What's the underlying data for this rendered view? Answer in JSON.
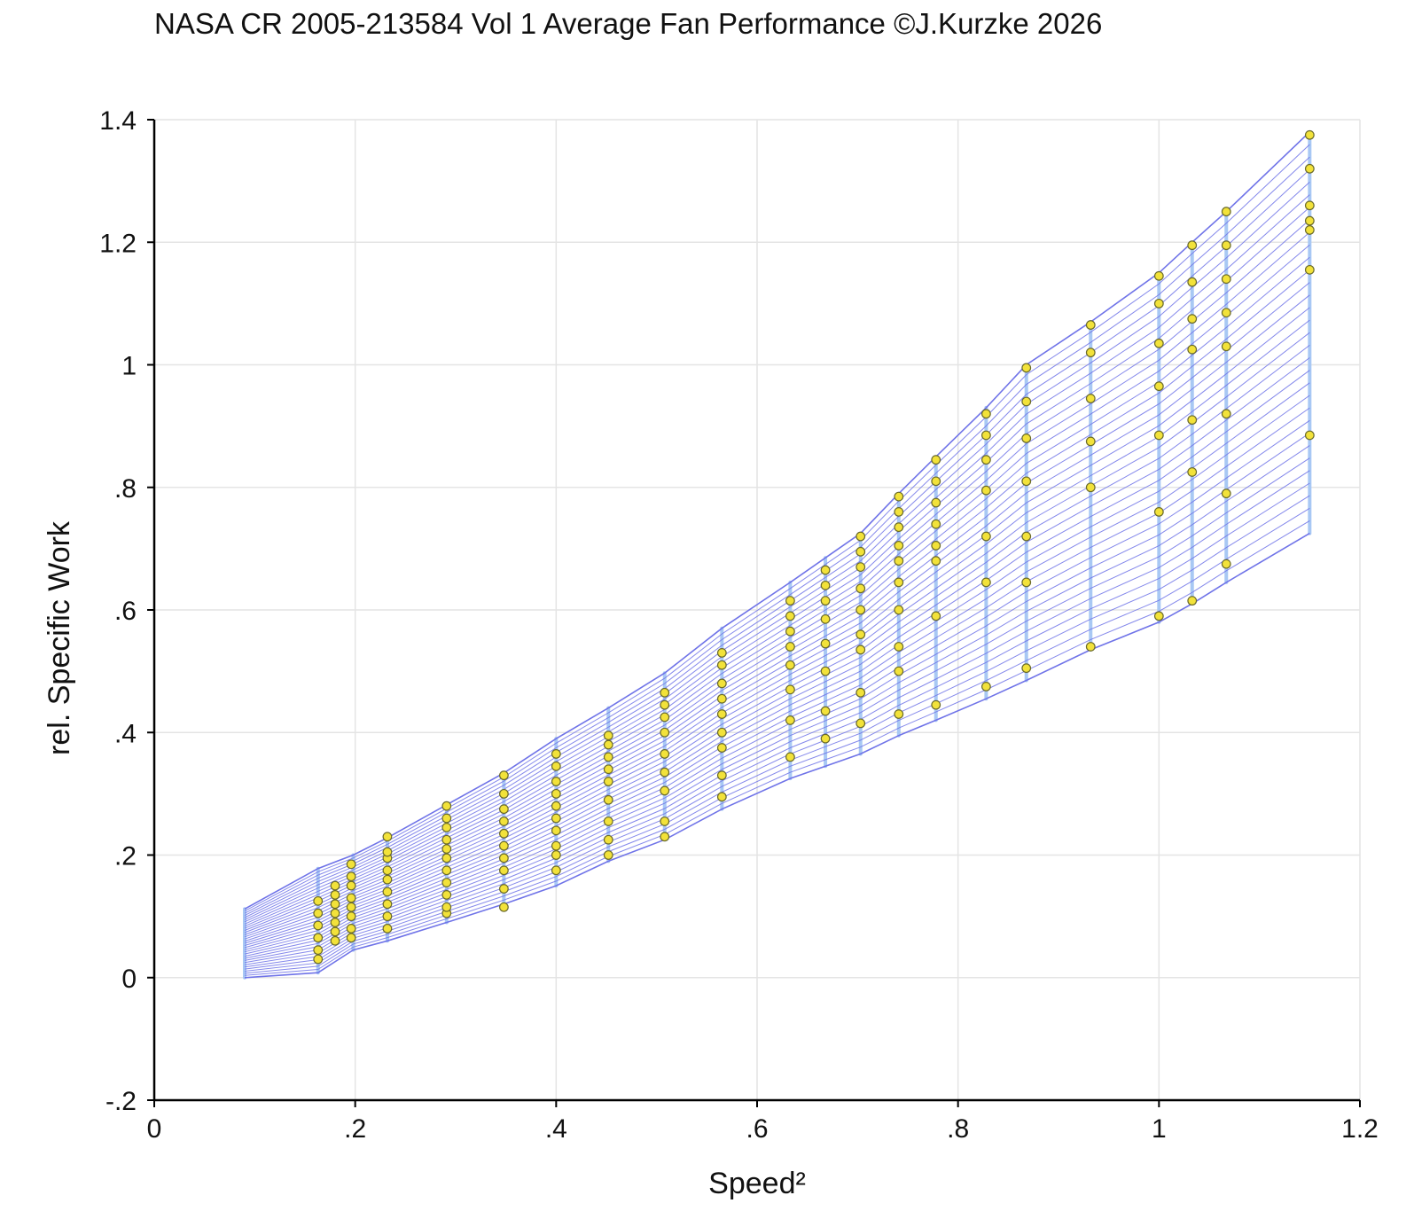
{
  "chart_data": {
    "type": "line",
    "title": "NASA CR 2005-213584 Vol 1 Average Fan Performance ©J.Kurzke 2026",
    "xlabel": "Speed²",
    "ylabel": "rel. Specific Work",
    "xlim": [
      0,
      1.2
    ],
    "ylim": [
      -0.2,
      1.4
    ],
    "xticks": [
      "0",
      ".2",
      ".4",
      ".6",
      ".8",
      "1",
      "1.2"
    ],
    "yticks": [
      "-.2",
      "0",
      ".2",
      ".4",
      ".6",
      ".8",
      "1",
      "1.2",
      "1.4"
    ],
    "grid": true,
    "legend": "none",
    "colors": {
      "lines": "#6f73e8",
      "speed_lines": "#a8c8f4",
      "markers": "#f2e23a",
      "marker_edge": "#6a6a2a"
    },
    "series": [
      {
        "x": [
          0.09,
          0.163,
          0.198,
          0.232,
          0.291,
          0.348,
          0.4,
          0.452,
          0.508,
          0.565,
          0.633,
          0.668,
          0.703,
          0.741,
          0.778,
          0.828,
          0.868,
          0.932,
          1.0,
          1.033,
          1.067,
          1.15
        ],
        "y": [
          0.112,
          0.178,
          0.2,
          0.228,
          0.282,
          0.334,
          0.39,
          0.44,
          0.497,
          0.57,
          0.645,
          0.685,
          0.725,
          0.79,
          0.85,
          0.93,
          1.0,
          1.07,
          1.15,
          1.2,
          1.25,
          1.38
        ]
      },
      {
        "x": [
          0.09,
          0.163,
          0.198,
          0.232,
          0.291,
          0.348,
          0.4,
          0.452,
          0.508,
          0.565,
          0.633,
          0.668,
          0.703,
          0.741,
          0.778,
          0.828,
          0.868,
          0.932,
          1.0,
          1.033,
          1.067,
          1.15
        ],
        "y": [
          0.0,
          0.008,
          0.045,
          0.06,
          0.09,
          0.12,
          0.15,
          0.19,
          0.225,
          0.275,
          0.325,
          0.345,
          0.365,
          0.395,
          0.42,
          0.455,
          0.485,
          0.535,
          0.58,
          0.61,
          0.645,
          0.725
        ]
      }
    ],
    "speed_line_x": [
      0.09,
      0.163,
      0.198,
      0.232,
      0.291,
      0.348,
      0.4,
      0.452,
      0.508,
      0.565,
      0.633,
      0.668,
      0.703,
      0.741,
      0.778,
      0.828,
      0.868,
      0.932,
      1.0,
      1.033,
      1.067,
      1.15
    ],
    "points": [
      {
        "x": 0.163,
        "y": [
          0.03,
          0.045,
          0.065,
          0.085,
          0.105,
          0.125
        ]
      },
      {
        "x": 0.18,
        "y": [
          0.06,
          0.075,
          0.09,
          0.105,
          0.12,
          0.135,
          0.15
        ]
      },
      {
        "x": 0.196,
        "y": [
          0.065,
          0.08,
          0.1,
          0.115,
          0.13,
          0.15,
          0.165,
          0.185
        ]
      },
      {
        "x": 0.232,
        "y": [
          0.08,
          0.1,
          0.12,
          0.14,
          0.16,
          0.175,
          0.195,
          0.205,
          0.23
        ]
      },
      {
        "x": 0.291,
        "y": [
          0.105,
          0.115,
          0.135,
          0.155,
          0.175,
          0.195,
          0.21,
          0.225,
          0.245,
          0.26,
          0.28
        ]
      },
      {
        "x": 0.348,
        "y": [
          0.115,
          0.145,
          0.175,
          0.195,
          0.215,
          0.235,
          0.255,
          0.275,
          0.3,
          0.33
        ]
      },
      {
        "x": 0.4,
        "y": [
          0.175,
          0.2,
          0.215,
          0.24,
          0.26,
          0.28,
          0.3,
          0.32,
          0.345,
          0.365
        ]
      },
      {
        "x": 0.452,
        "y": [
          0.2,
          0.225,
          0.255,
          0.29,
          0.32,
          0.34,
          0.36,
          0.38,
          0.395
        ]
      },
      {
        "x": 0.508,
        "y": [
          0.23,
          0.255,
          0.305,
          0.335,
          0.365,
          0.4,
          0.425,
          0.445,
          0.465
        ]
      },
      {
        "x": 0.565,
        "y": [
          0.295,
          0.33,
          0.375,
          0.4,
          0.43,
          0.455,
          0.48,
          0.51,
          0.53
        ]
      },
      {
        "x": 0.633,
        "y": [
          0.36,
          0.42,
          0.47,
          0.51,
          0.54,
          0.565,
          0.59,
          0.615
        ]
      },
      {
        "x": 0.668,
        "y": [
          0.39,
          0.435,
          0.5,
          0.545,
          0.585,
          0.615,
          0.64,
          0.665
        ]
      },
      {
        "x": 0.703,
        "y": [
          0.415,
          0.465,
          0.535,
          0.56,
          0.6,
          0.635,
          0.67,
          0.695,
          0.72
        ]
      },
      {
        "x": 0.741,
        "y": [
          0.43,
          0.5,
          0.54,
          0.6,
          0.645,
          0.68,
          0.705,
          0.735,
          0.76,
          0.785
        ]
      },
      {
        "x": 0.778,
        "y": [
          0.445,
          0.59,
          0.68,
          0.705,
          0.74,
          0.775,
          0.81,
          0.845
        ]
      },
      {
        "x": 0.828,
        "y": [
          0.475,
          0.645,
          0.72,
          0.795,
          0.845,
          0.885,
          0.92
        ]
      },
      {
        "x": 0.868,
        "y": [
          0.505,
          0.645,
          0.72,
          0.81,
          0.88,
          0.94,
          0.995
        ]
      },
      {
        "x": 0.932,
        "y": [
          0.54,
          0.8,
          0.875,
          0.945,
          1.02,
          1.065
        ]
      },
      {
        "x": 1.0,
        "y": [
          0.59,
          0.76,
          0.885,
          0.965,
          1.035,
          1.1,
          1.145
        ]
      },
      {
        "x": 1.033,
        "y": [
          0.615,
          0.825,
          0.91,
          1.025,
          1.075,
          1.135,
          1.195
        ]
      },
      {
        "x": 1.067,
        "y": [
          0.675,
          0.79,
          0.92,
          1.03,
          1.085,
          1.14,
          1.195,
          1.25
        ]
      },
      {
        "x": 1.15,
        "y": [
          0.885,
          1.155,
          1.22,
          1.235,
          1.26,
          1.32,
          1.375
        ]
      }
    ]
  }
}
